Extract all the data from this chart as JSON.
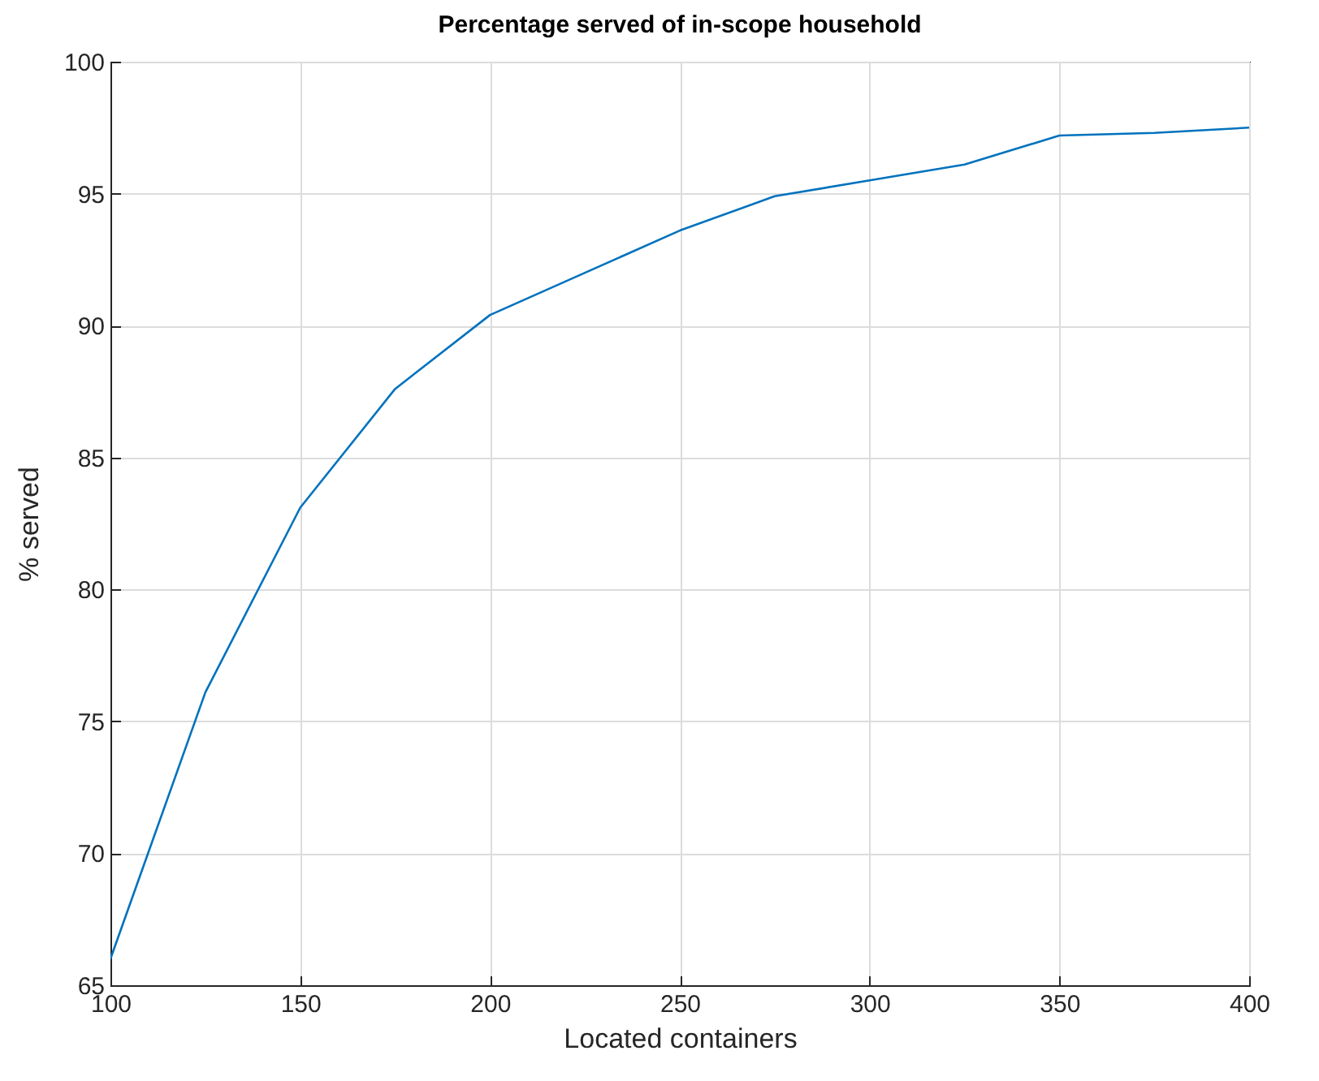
{
  "chart_data": {
    "type": "line",
    "title": "Percentage served of in-scope household",
    "xlabel": "Located containers",
    "ylabel": "% served",
    "x": [
      100,
      125,
      150,
      175,
      200,
      225,
      250,
      275,
      300,
      325,
      350,
      375,
      400
    ],
    "series": [
      {
        "color": "#0072bd",
        "values": [
          66.0,
          76.1,
          83.1,
          87.6,
          90.4,
          92.0,
          93.6,
          94.9,
          95.5,
          96.1,
          97.2,
          97.3,
          97.5
        ]
      }
    ],
    "xlim": [
      100,
      400
    ],
    "xticks": [
      100,
      150,
      200,
      250,
      300,
      350,
      400
    ],
    "ylim": [
      65,
      100
    ],
    "yticks": [
      65,
      70,
      75,
      80,
      85,
      90,
      95,
      100
    ],
    "grid": true,
    "marker": "none",
    "line_style": "solid"
  }
}
